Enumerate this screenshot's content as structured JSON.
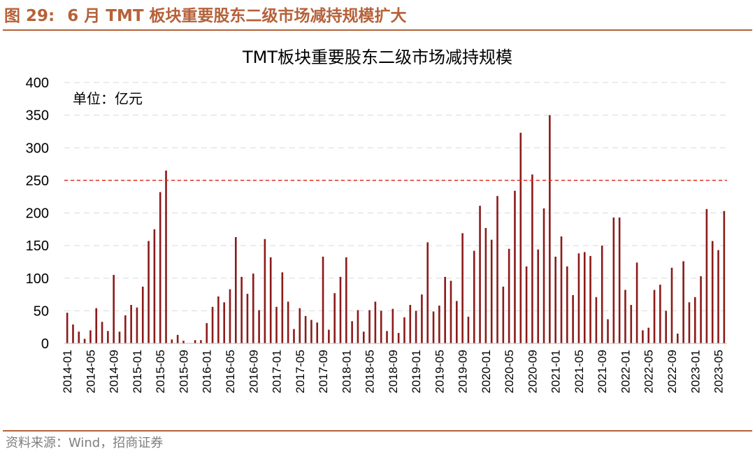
{
  "header": {
    "figure_label": "图 29:",
    "figure_title": "6 月 TMT 板块重要股东二级市场减持规模扩大"
  },
  "source_note": "资料来源：Wind，招商证券",
  "colors": {
    "accent": "#b5613a",
    "bar": "#8b1a1a",
    "reference_line": "#e0302a",
    "grid": "#d9d9d9"
  },
  "chart_data": {
    "type": "bar",
    "title": "TMT板块重要股东二级市场减持规模",
    "unit_label": "单位：亿元",
    "xlabel": "",
    "ylabel": "",
    "ylim": [
      0,
      400
    ],
    "yticks": [
      0,
      50,
      100,
      150,
      200,
      250,
      300,
      350,
      400
    ],
    "grid": true,
    "reference_line": 250,
    "x_tick_labels": [
      "2014-01",
      "2014-05",
      "2014-09",
      "2015-01",
      "2015-05",
      "2015-09",
      "2016-01",
      "2016-05",
      "2016-09",
      "2017-01",
      "2017-05",
      "2017-09",
      "2018-01",
      "2018-05",
      "2018-09",
      "2019-01",
      "2019-05",
      "2019-09",
      "2020-01",
      "2020-05",
      "2020-09",
      "2021-01",
      "2021-05",
      "2021-09",
      "2022-01",
      "2022-05",
      "2022-09",
      "2023-01",
      "2023-05"
    ],
    "categories": [
      "2014-01",
      "2014-02",
      "2014-03",
      "2014-04",
      "2014-05",
      "2014-06",
      "2014-07",
      "2014-08",
      "2014-09",
      "2014-10",
      "2014-11",
      "2014-12",
      "2015-01",
      "2015-02",
      "2015-03",
      "2015-04",
      "2015-05",
      "2015-06",
      "2015-07",
      "2015-08",
      "2015-09",
      "2015-10",
      "2015-11",
      "2015-12",
      "2016-01",
      "2016-02",
      "2016-03",
      "2016-04",
      "2016-05",
      "2016-06",
      "2016-07",
      "2016-08",
      "2016-09",
      "2016-10",
      "2016-11",
      "2016-12",
      "2017-01",
      "2017-02",
      "2017-03",
      "2017-04",
      "2017-05",
      "2017-06",
      "2017-07",
      "2017-08",
      "2017-09",
      "2017-10",
      "2017-11",
      "2017-12",
      "2018-01",
      "2018-02",
      "2018-03",
      "2018-04",
      "2018-05",
      "2018-06",
      "2018-07",
      "2018-08",
      "2018-09",
      "2018-10",
      "2018-11",
      "2018-12",
      "2019-01",
      "2019-02",
      "2019-03",
      "2019-04",
      "2019-05",
      "2019-06",
      "2019-07",
      "2019-08",
      "2019-09",
      "2019-10",
      "2019-11",
      "2019-12",
      "2020-01",
      "2020-02",
      "2020-03",
      "2020-04",
      "2020-05",
      "2020-06",
      "2020-07",
      "2020-08",
      "2020-09",
      "2020-10",
      "2020-11",
      "2020-12",
      "2021-01",
      "2021-02",
      "2021-03",
      "2021-04",
      "2021-05",
      "2021-06",
      "2021-07",
      "2021-08",
      "2021-09",
      "2021-10",
      "2021-11",
      "2021-12",
      "2022-01",
      "2022-02",
      "2022-03",
      "2022-04",
      "2022-05",
      "2022-06",
      "2022-07",
      "2022-08",
      "2022-09",
      "2022-10",
      "2022-11",
      "2022-12",
      "2023-01",
      "2023-02",
      "2023-03",
      "2023-04",
      "2023-05",
      "2023-06"
    ],
    "values": [
      47,
      29,
      18,
      7,
      20,
      54,
      33,
      19,
      105,
      18,
      43,
      59,
      55,
      87,
      157,
      175,
      232,
      265,
      6,
      13,
      4,
      0,
      5,
      5,
      31,
      56,
      72,
      63,
      83,
      163,
      102,
      76,
      107,
      51,
      160,
      132,
      56,
      109,
      64,
      22,
      54,
      42,
      36,
      32,
      133,
      21,
      77,
      102,
      132,
      34,
      51,
      18,
      51,
      64,
      50,
      19,
      53,
      16,
      40,
      59,
      50,
      75,
      155,
      49,
      58,
      102,
      96,
      65,
      169,
      41,
      142,
      211,
      177,
      159,
      226,
      87,
      145,
      234,
      323,
      118,
      259,
      144,
      207,
      350,
      133,
      164,
      118,
      74,
      138,
      140,
      134,
      71,
      150,
      37,
      193,
      193,
      82,
      59,
      124,
      20,
      24,
      82,
      90,
      50,
      116,
      15,
      126,
      63,
      71,
      103,
      206,
      157,
      143,
      203
    ]
  }
}
